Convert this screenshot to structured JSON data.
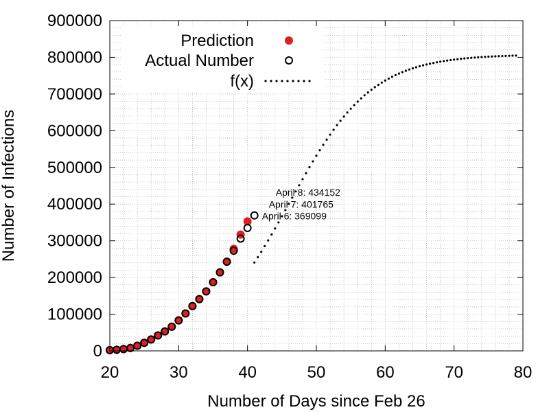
{
  "chart_data": {
    "type": "scatter",
    "title": "",
    "xlabel": "Number of Days since Feb 26",
    "ylabel": "Number of Infections",
    "xlim": [
      20,
      80
    ],
    "ylim": [
      0,
      900000
    ],
    "xticks": [
      20,
      30,
      40,
      50,
      60,
      70,
      80
    ],
    "yticks": [
      0,
      100000,
      200000,
      300000,
      400000,
      500000,
      600000,
      700000,
      800000,
      900000
    ],
    "grid": true,
    "minor_grid": true,
    "legend_position": "top-left",
    "colors": {
      "prediction": "#e02020",
      "actual": "#000000",
      "fit": "#000000",
      "grid": "#b0b0b0"
    },
    "series": [
      {
        "name": "Prediction",
        "marker": "filled-circle",
        "x": [
          20,
          21,
          22,
          23,
          24,
          25,
          26,
          27,
          28,
          29,
          30,
          31,
          32,
          33,
          34,
          35,
          36,
          37,
          38,
          39,
          40
        ],
        "y": [
          2000,
          3000,
          5000,
          8000,
          14000,
          22000,
          31000,
          42000,
          53000,
          66000,
          83000,
          102000,
          122000,
          141000,
          162000,
          187000,
          214000,
          243000,
          278000,
          317000,
          353000
        ]
      },
      {
        "name": "Actual Number",
        "marker": "open-circle",
        "x": [
          20,
          21,
          22,
          23,
          24,
          25,
          26,
          27,
          28,
          29,
          30,
          31,
          32,
          33,
          34,
          35,
          36,
          37,
          38,
          39,
          40,
          41
        ],
        "y": [
          2000,
          3000,
          5000,
          8000,
          14000,
          22000,
          31000,
          42000,
          53000,
          66000,
          83000,
          102000,
          122000,
          141000,
          162000,
          187000,
          214000,
          243000,
          273000,
          306000,
          335000,
          369099
        ]
      },
      {
        "name": "f(x)",
        "line_style": "dotted",
        "logistic": {
          "K": 808000,
          "x0": 46.1,
          "k": 0.168
        },
        "x_range": [
          41,
          79
        ]
      }
    ],
    "annotations": [
      {
        "text": "April 6: 369099",
        "x": 41,
        "y": 369099
      },
      {
        "text": "April 7: 401765",
        "x": 42,
        "y": 401765
      },
      {
        "text": "April 8: 434152",
        "x": 43,
        "y": 434152
      }
    ]
  }
}
